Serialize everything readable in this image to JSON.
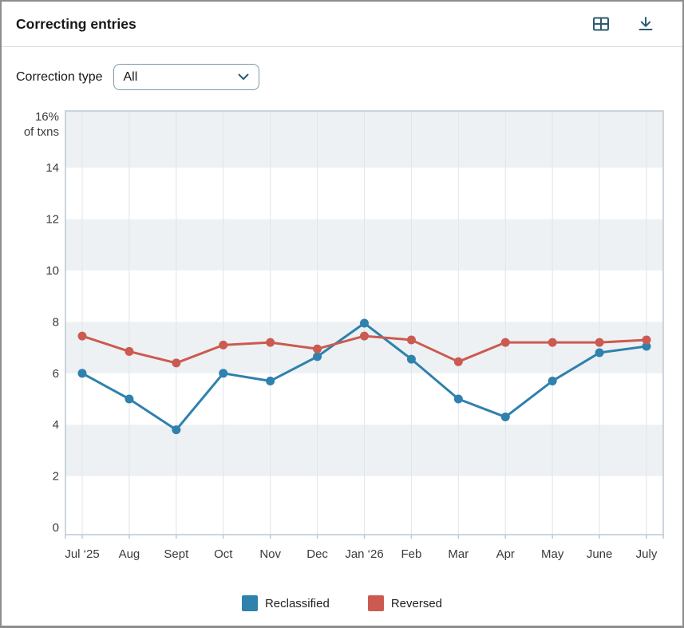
{
  "header": {
    "title": "Correcting entries",
    "icons": [
      {
        "name": "table-view-icon"
      },
      {
        "name": "download-icon"
      }
    ]
  },
  "filters": {
    "label": "Correction type",
    "selected_value": "All"
  },
  "theme": {
    "icon_color": "#2d5b72",
    "band_color": "#eef1f3",
    "gridline_color": "#dfe6ea",
    "plot_border_color": "#bcc9d2",
    "axis_text_color": "#3a3a3a",
    "reclassified_color": "#2f81ae",
    "reversed_color": "#cb5b51"
  },
  "chart_data": {
    "type": "line",
    "title": "Correcting entries",
    "x_labels": [
      "Jul ‘25",
      "Aug",
      "Sept",
      "Oct",
      "Nov",
      "Dec",
      "Jan ‘26",
      "Feb",
      "Mar",
      "Apr",
      "May",
      "June",
      "July"
    ],
    "y_axis": {
      "min": 0,
      "max": 16,
      "unit": "% of txns",
      "ticks": [
        {
          "v": 16,
          "label": "16%",
          "sublabel": "of txns"
        },
        {
          "v": 14,
          "label": "14"
        },
        {
          "v": 12,
          "label": "12"
        },
        {
          "v": 10,
          "label": "10"
        },
        {
          "v": 8,
          "label": "8"
        },
        {
          "v": 6,
          "label": "6"
        },
        {
          "v": 4,
          "label": "4"
        },
        {
          "v": 2,
          "label": "2"
        },
        {
          "v": 0,
          "label": "0"
        }
      ]
    },
    "series": [
      {
        "name": "Reclassified",
        "color": "#2f81ae",
        "values": [
          6.0,
          5.0,
          3.8,
          6.0,
          5.7,
          6.65,
          7.95,
          6.55,
          5.0,
          4.3,
          5.7,
          6.8,
          7.05
        ]
      },
      {
        "name": "Reversed",
        "color": "#cb5b51",
        "values": [
          7.45,
          6.85,
          6.4,
          7.1,
          7.2,
          6.95,
          7.45,
          7.3,
          6.45,
          7.2,
          7.2,
          7.2,
          7.3
        ]
      }
    ],
    "legend_position": "bottom",
    "grid": "vertical-only",
    "stripe_bands": [
      [
        14,
        16
      ],
      [
        10,
        12
      ],
      [
        6,
        8
      ],
      [
        2,
        4
      ]
    ]
  }
}
